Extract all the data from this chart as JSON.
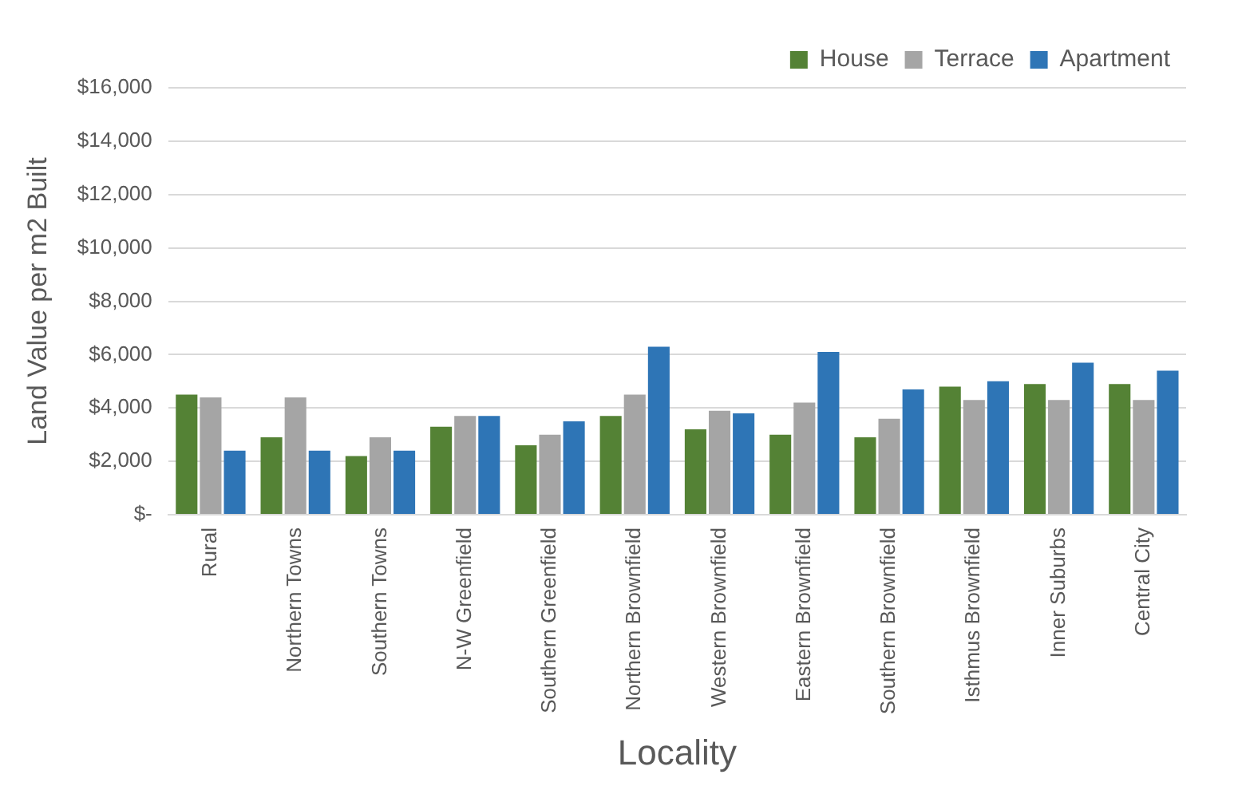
{
  "chart_data": {
    "type": "bar",
    "xlabel": "Locality",
    "ylabel": "Land Value per m2 Built",
    "categories": [
      "Rural",
      "Northern Towns",
      "Southern Towns",
      "N-W Greenfield",
      "Southern Greenfield",
      "Northern Brownfield",
      "Western Brownfield",
      "Eastern Brownfield",
      "Southern Brownfield",
      "Isthmus Brownfield",
      "Inner Suburbs",
      "Central City"
    ],
    "series": [
      {
        "name": "House",
        "color": "#548235",
        "values": [
          4500,
          2900,
          2200,
          3300,
          2600,
          3700,
          3200,
          3000,
          2900,
          4800,
          4900,
          4900
        ]
      },
      {
        "name": "Terrace",
        "color": "#a5a5a5",
        "values": [
          4400,
          4400,
          2900,
          3700,
          3000,
          4500,
          3900,
          4200,
          3600,
          4300,
          4300,
          4300
        ]
      },
      {
        "name": "Apartment",
        "color": "#2e75b6",
        "values": [
          2400,
          2400,
          2400,
          3700,
          3500,
          6300,
          3800,
          6100,
          4700,
          5000,
          5700,
          5400
        ]
      }
    ],
    "ylim": [
      0,
      16000
    ],
    "yticks": [
      {
        "value": 0,
        "label": "$-"
      },
      {
        "value": 2000,
        "label": "$2,000"
      },
      {
        "value": 4000,
        "label": "$4,000"
      },
      {
        "value": 6000,
        "label": "$6,000"
      },
      {
        "value": 8000,
        "label": "$8,000"
      },
      {
        "value": 10000,
        "label": "$10,000"
      },
      {
        "value": 12000,
        "label": "$12,000"
      },
      {
        "value": 14000,
        "label": "$14,000"
      },
      {
        "value": 16000,
        "label": "$16,000"
      }
    ],
    "grid": "y",
    "legend": "top right"
  }
}
